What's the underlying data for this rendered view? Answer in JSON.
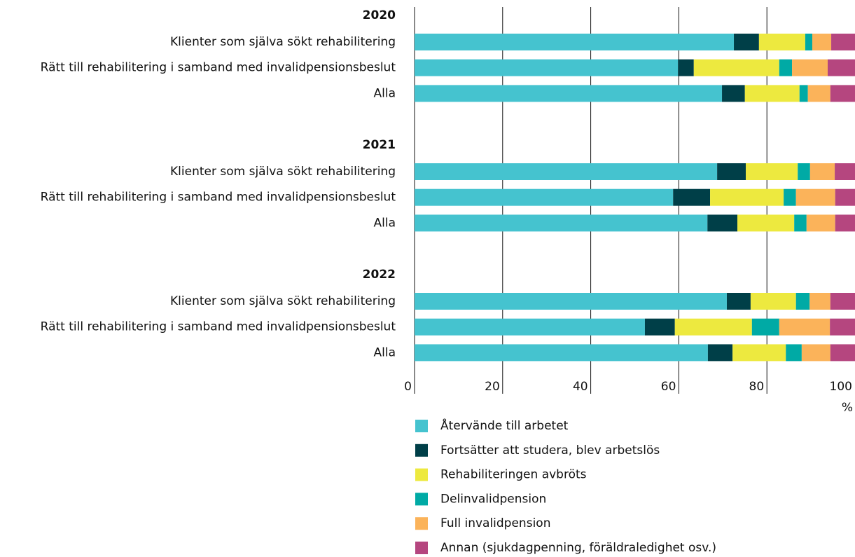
{
  "chart_data": {
    "type": "stacked-barh",
    "xlabel": "%",
    "groups": [
      "2020",
      "2021",
      "2022"
    ],
    "categories": [
      "Klienter som själva sökt rehabilitering",
      "Rätt till rehabilitering i samband med invalidpensionsbeslut",
      "Alla",
      "Klienter som själva sökt rehabilitering",
      "Rätt till rehabilitering i samband med invalidpensionsbeslut",
      "Alla",
      "Klienter som själva sökt rehabilitering",
      "Rätt till rehabilitering i samband med invalidpensionsbeslut",
      "Alla"
    ],
    "series": [
      {
        "name": "Återvände till arbetet",
        "color": "#45c3cf",
        "values": [
          72.5,
          59.8,
          69.8,
          68.7,
          58.7,
          66.5,
          70.9,
          52.3,
          66.6
        ]
      },
      {
        "name": "Fortsätter att studera, blev arbetslös",
        "color": "#003f48",
        "values": [
          5.7,
          3.6,
          5.2,
          6.5,
          8.4,
          6.8,
          5.4,
          6.8,
          5.6
        ]
      },
      {
        "name": "Rehabiliteringen avbröts",
        "color": "#ede93f",
        "values": [
          10.5,
          19.4,
          12.4,
          11.8,
          16.7,
          12.9,
          10.3,
          17.5,
          12.1
        ]
      },
      {
        "name": "Delinvalidpension",
        "color": "#00aaa5",
        "values": [
          1.6,
          2.9,
          1.9,
          2.8,
          2.8,
          2.8,
          3.1,
          6.2,
          3.6
        ]
      },
      {
        "name": "Full invalidpension",
        "color": "#fbb35a",
        "values": [
          4.3,
          8.1,
          5.1,
          5.6,
          8.9,
          6.5,
          4.7,
          11.5,
          6.5
        ]
      },
      {
        "name": "Annan (sjukdagpenning, föräldraledighet osv.)",
        "color": "#b5467f",
        "values": [
          5.4,
          6.2,
          5.6,
          4.6,
          4.5,
          4.5,
          5.6,
          5.7,
          5.6
        ]
      }
    ],
    "xlim": [
      0,
      100
    ],
    "xticks": [
      0,
      20,
      40,
      60,
      80,
      100
    ],
    "grid": true
  }
}
